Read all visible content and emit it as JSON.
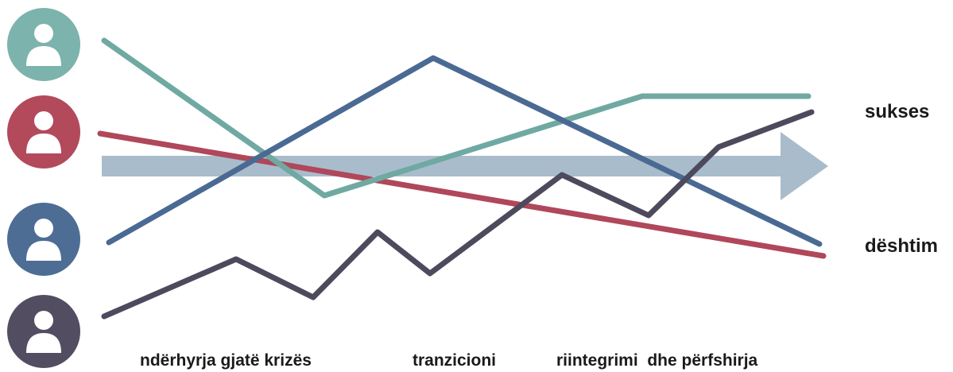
{
  "stages": [
    {
      "label": "ndërhyrja gjatë krizës"
    },
    {
      "label": "tranzicioni"
    },
    {
      "label": "riintegrimi  dhe përfshirja"
    }
  ],
  "outcomes": {
    "top": "sukses",
    "bottom": "dështim"
  },
  "colors": {
    "teal": "#6fa9a2",
    "red": "#b0475a",
    "blue": "#4a6a93",
    "dark": "#4e4a5d",
    "arrow": "#a9bccb"
  },
  "persons": [
    {
      "id": "teal",
      "icon": "person-icon",
      "color": "#6fa9a2"
    },
    {
      "id": "red",
      "icon": "person-icon",
      "color": "#b0475a"
    },
    {
      "id": "blue",
      "icon": "person-icon",
      "color": "#4a6a93"
    },
    {
      "id": "dark",
      "icon": "person-icon",
      "color": "#4e4a5d"
    }
  ]
}
